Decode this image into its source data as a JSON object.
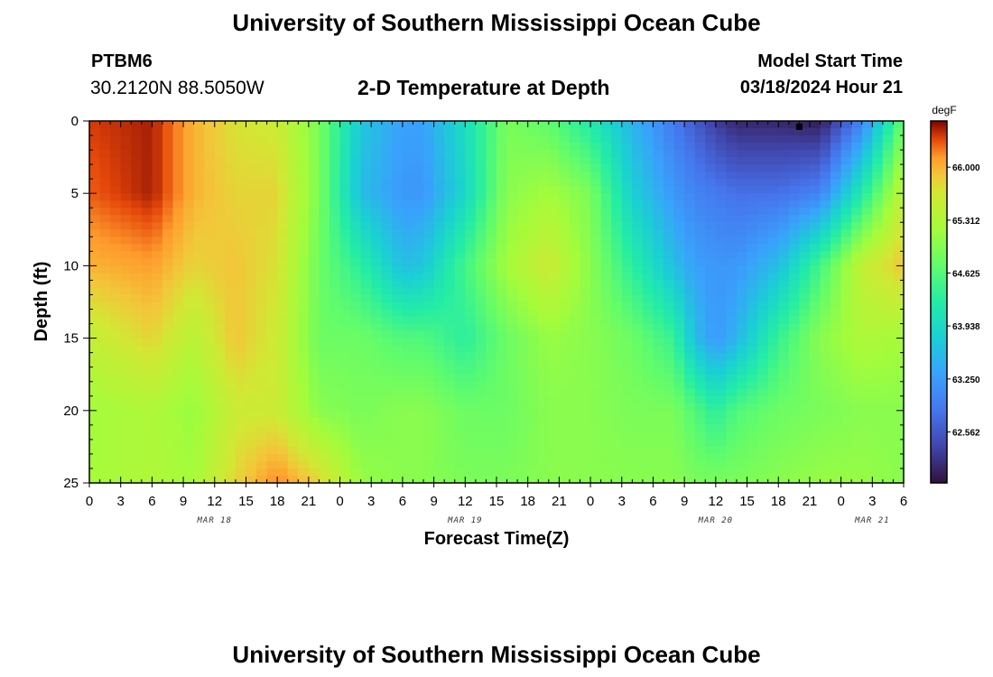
{
  "header": {
    "title": "University of Southern Mississippi Ocean Cube",
    "station_id": "PTBM6",
    "station_location": "30.2120N  88.5050W",
    "chart_title": "2-D Temperature at Depth",
    "model_start_label": "Model Start Time",
    "model_start_value": "03/18/2024 Hour 21"
  },
  "footer": {
    "title": "University of Southern Mississippi Ocean Cube"
  },
  "chart_data": {
    "type": "heatmap",
    "title": "2-D Temperature at Depth",
    "xlabel": "Forecast Time(Z)",
    "ylabel": "Depth (ft)",
    "y_ticks": [
      "0",
      "5",
      "10",
      "15",
      "20",
      "25"
    ],
    "ylim": [
      0,
      25
    ],
    "y_inverted": true,
    "x_hour_ticks": [
      "0",
      "3",
      "6",
      "9",
      "12",
      "15",
      "18",
      "21",
      "0",
      "3",
      "6",
      "9",
      "12",
      "15",
      "18",
      "21",
      "0",
      "3",
      "6",
      "9",
      "12",
      "15",
      "18",
      "21",
      "0",
      "3",
      "6"
    ],
    "x_date_labels": [
      {
        "label": "MAR 18",
        "hour_index": 4
      },
      {
        "label": "MAR 19",
        "hour_index": 12
      },
      {
        "label": "MAR 20",
        "hour_index": 20
      },
      {
        "label": "MAR 21",
        "hour_index": 25
      }
    ],
    "xlim_hours": [
      0,
      78
    ],
    "colorbar": {
      "unit": "degF",
      "ticks": [
        "66.000",
        "65.312",
        "64.625",
        "63.938",
        "63.250",
        "62.562"
      ],
      "range": [
        61.9,
        66.6
      ]
    },
    "time_hours": [
      0,
      6,
      10,
      14,
      18,
      22,
      26,
      30,
      32,
      36,
      40,
      44,
      48,
      52,
      56,
      58,
      60,
      62,
      66,
      70,
      74,
      78
    ],
    "depths_ft": [
      0,
      5,
      10,
      15,
      20,
      25
    ],
    "temperature_degF": [
      [
        66.4,
        66.5,
        66.0,
        65.7,
        65.6,
        64.9,
        63.7,
        63.3,
        63.3,
        64.0,
        64.9,
        64.7,
        64.2,
        63.5,
        62.9,
        62.6,
        62.3,
        62.1,
        62.1,
        62.0,
        63.0,
        64.8
      ],
      [
        66.3,
        66.5,
        66.0,
        65.8,
        65.8,
        64.9,
        63.6,
        63.2,
        63.2,
        63.9,
        65.0,
        65.2,
        64.9,
        63.8,
        63.2,
        63.0,
        62.9,
        62.8,
        62.8,
        63.0,
        64.2,
        65.5
      ],
      [
        66.0,
        66.1,
        65.8,
        65.9,
        65.7,
        64.8,
        64.3,
        63.6,
        63.7,
        64.5,
        65.2,
        65.6,
        65.0,
        64.3,
        63.6,
        63.3,
        63.2,
        63.2,
        63.6,
        64.5,
        65.5,
        65.9
      ],
      [
        65.5,
        65.8,
        65.4,
        65.9,
        65.6,
        64.8,
        64.8,
        64.6,
        64.6,
        64.3,
        64.8,
        65.1,
        65.0,
        64.8,
        64.4,
        63.6,
        63.2,
        63.5,
        64.4,
        65.0,
        65.3,
        65.2
      ],
      [
        65.2,
        65.3,
        65.1,
        65.6,
        65.6,
        65.0,
        64.9,
        65.0,
        65.0,
        64.8,
        64.8,
        65.0,
        65.0,
        64.9,
        64.9,
        64.6,
        64.3,
        64.6,
        64.8,
        64.9,
        65.0,
        65.0
      ],
      [
        65.2,
        65.3,
        65.2,
        65.8,
        66.2,
        65.8,
        65.1,
        65.0,
        65.0,
        64.9,
        64.9,
        65.0,
        65.0,
        65.0,
        65.0,
        64.9,
        64.9,
        64.9,
        65.0,
        65.1,
        65.1,
        65.0
      ]
    ],
    "marker": {
      "time_hours": 68,
      "depth_ft": 0.4
    }
  }
}
